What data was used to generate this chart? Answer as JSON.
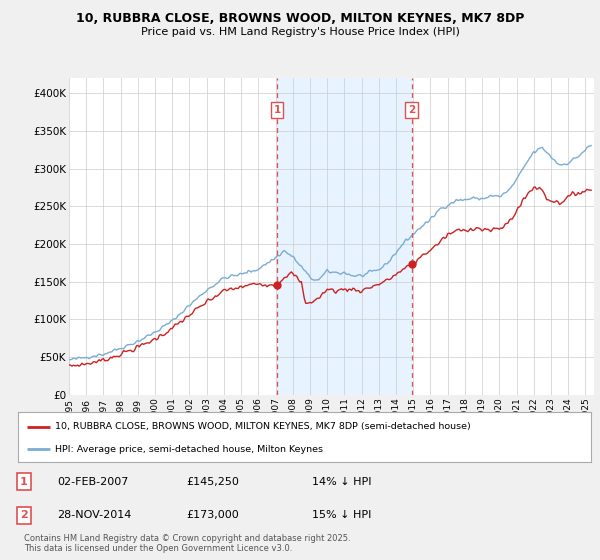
{
  "title": "10, RUBBRA CLOSE, BROWNS WOOD, MILTON KEYNES, MK7 8DP",
  "subtitle": "Price paid vs. HM Land Registry's House Price Index (HPI)",
  "legend_line1": "10, RUBBRA CLOSE, BROWNS WOOD, MILTON KEYNES, MK7 8DP (semi-detached house)",
  "legend_line2": "HPI: Average price, semi-detached house, Milton Keynes",
  "footer": "Contains HM Land Registry data © Crown copyright and database right 2025.\nThis data is licensed under the Open Government Licence v3.0.",
  "sale1_date": "02-FEB-2007",
  "sale1_price": "£145,250",
  "sale1_hpi": "14% ↓ HPI",
  "sale2_date": "28-NOV-2014",
  "sale2_price": "£173,000",
  "sale2_hpi": "15% ↓ HPI",
  "sale1_x": 2007.09,
  "sale1_y": 145250,
  "sale2_x": 2014.91,
  "sale2_y": 173000,
  "vline1_x": 2007.09,
  "vline2_x": 2014.91,
  "ylim_min": 0,
  "ylim_max": 420000,
  "xlim_min": 1995.0,
  "xlim_max": 2025.5,
  "yticks": [
    0,
    50000,
    100000,
    150000,
    200000,
    250000,
    300000,
    350000,
    400000
  ],
  "ytick_labels": [
    "£0",
    "£50K",
    "£100K",
    "£150K",
    "£200K",
    "£250K",
    "£300K",
    "£350K",
    "£400K"
  ],
  "xticks": [
    1995,
    1996,
    1997,
    1998,
    1999,
    2000,
    2001,
    2002,
    2003,
    2004,
    2005,
    2006,
    2007,
    2008,
    2009,
    2010,
    2011,
    2012,
    2013,
    2014,
    2015,
    2016,
    2017,
    2018,
    2019,
    2020,
    2021,
    2022,
    2023,
    2024,
    2025
  ],
  "hpi_color": "#7aadd4",
  "price_color": "#cc2222",
  "vline_color": "#e05050",
  "shade_color": "#ddeeff",
  "background_color": "#f0f0f0",
  "plot_bg_color": "#ffffff",
  "grid_color": "#cccccc",
  "hpi_data_seed": 42,
  "price_data_seed": 7
}
